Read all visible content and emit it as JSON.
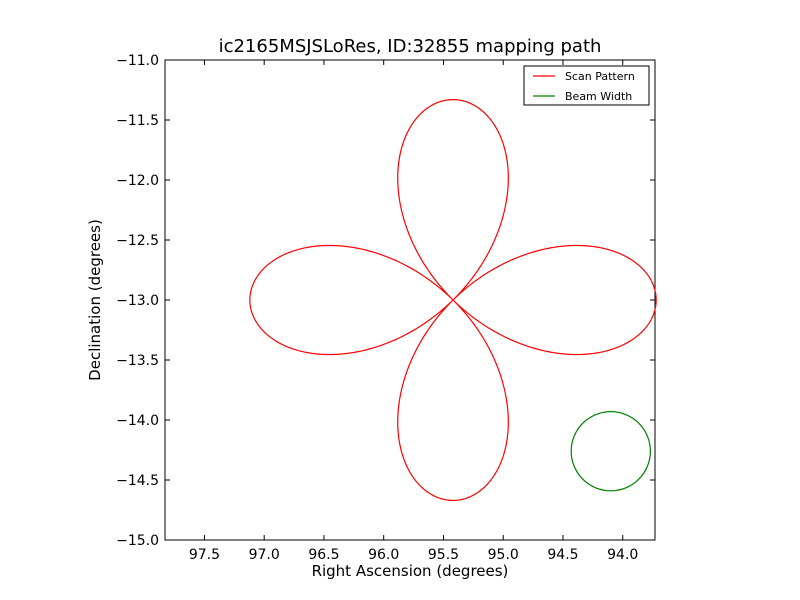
{
  "chart_data": {
    "type": "line",
    "title": "ic2165MSJSLoRes, ID:32855 mapping path",
    "xlabel": "Right Ascension (degrees)",
    "ylabel": "Declination (degrees)",
    "x_inverted": true,
    "xlim": [
      97.83,
      93.73
    ],
    "ylim": [
      -15.0,
      -11.0
    ],
    "xticks": [
      97.5,
      97.0,
      96.5,
      96.0,
      95.5,
      95.0,
      94.5,
      94.0
    ],
    "xtick_labels": [
      "97.5",
      "97.0",
      "96.5",
      "96.0",
      "95.5",
      "95.0",
      "94.5",
      "94.0"
    ],
    "yticks": [
      -11.0,
      -11.5,
      -12.0,
      -12.5,
      -13.0,
      -13.5,
      -14.0,
      -14.5,
      -15.0
    ],
    "ytick_labels": [
      "−11.0",
      "−11.5",
      "−12.0",
      "−12.5",
      "−13.0",
      "−13.5",
      "−14.0",
      "−14.5",
      "−15.0"
    ],
    "grid": false,
    "legend_position": "top-right",
    "series": [
      {
        "name": "Scan Pattern",
        "color": "#ff0000",
        "shape": "four-petal rose",
        "center": [
          95.42,
          -13.0
        ],
        "petal_length_ra": 1.7,
        "petal_length_dec": 1.67
      },
      {
        "name": "Beam Width",
        "color": "#008000",
        "shape": "circle",
        "center": [
          94.1,
          -14.26
        ],
        "radius_dec": 0.33
      }
    ]
  }
}
